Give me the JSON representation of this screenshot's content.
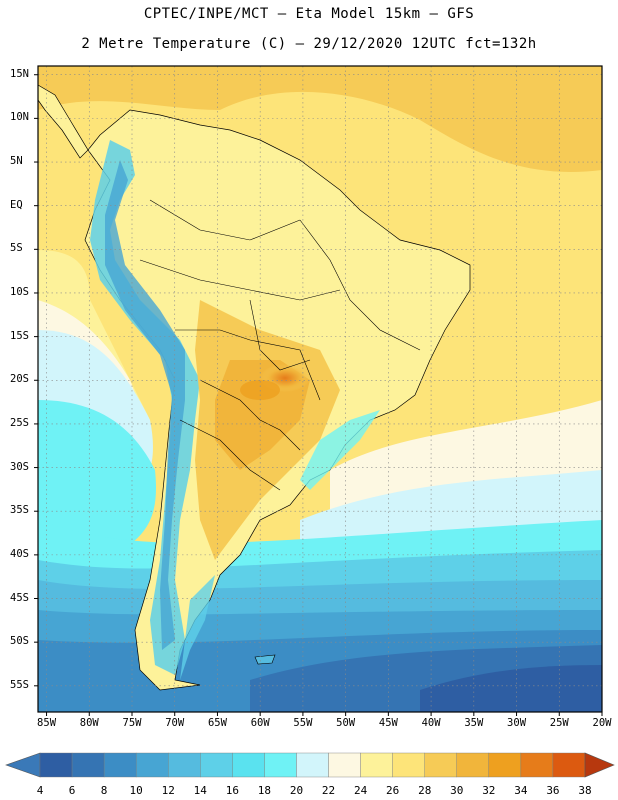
{
  "header": {
    "title_line1": "CPTEC/INPE/MCT –  Eta Model 15km – GFS",
    "title_line2": "2 Metre Temperature (C) – 29/12/2020 12UTC fct=132h"
  },
  "map": {
    "lat_labels": [
      "15N",
      "10N",
      "5N",
      "EQ",
      "5S",
      "10S",
      "15S",
      "20S",
      "25S",
      "30S",
      "35S",
      "40S",
      "45S",
      "50S",
      "55S"
    ],
    "lat_values": [
      15,
      10,
      5,
      0,
      -5,
      -10,
      -15,
      -20,
      -25,
      -30,
      -35,
      -40,
      -45,
      -50,
      -55
    ],
    "lon_labels": [
      "85W",
      "80W",
      "75W",
      "70W",
      "65W",
      "60W",
      "55W",
      "50W",
      "45W",
      "40W",
      "35W",
      "30W",
      "25W",
      "20W"
    ],
    "lon_values": [
      -85,
      -80,
      -75,
      -70,
      -65,
      -60,
      -55,
      -50,
      -45,
      -40,
      -35,
      -30,
      -25,
      -20
    ],
    "extent": {
      "lon_min": -86,
      "lon_max": -20,
      "lat_min": -58,
      "lat_max": 16
    }
  },
  "colorbar": {
    "labels": [
      "4",
      "6",
      "8",
      "10",
      "12",
      "14",
      "16",
      "18",
      "20",
      "22",
      "24",
      "26",
      "28",
      "30",
      "32",
      "34",
      "36",
      "38"
    ],
    "colors": [
      "#2e5ea3",
      "#3574b3",
      "#3c8dc5",
      "#47a5d3",
      "#55bbdf",
      "#5ed0e8",
      "#5ae2ef",
      "#6ff2f5",
      "#d2f5fb",
      "#fdf8e2",
      "#fdf29a",
      "#fde479",
      "#f6cb56",
      "#f1b53b",
      "#eea01f",
      "#e67c1a",
      "#dc5a10",
      "#c43c07"
    ],
    "under_color": "#3a79b8",
    "over_color": "#b7380e"
  }
}
